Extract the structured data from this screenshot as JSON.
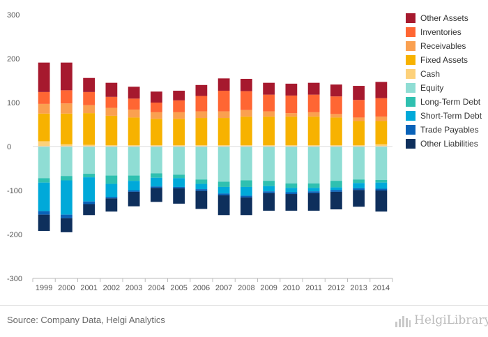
{
  "chart_data": {
    "type": "bar",
    "stacked": true,
    "categories": [
      "1999",
      "2000",
      "2001",
      "2002",
      "2003",
      "2004",
      "2005",
      "2006",
      "2007",
      "2008",
      "2009",
      "2010",
      "2011",
      "2012",
      "2013",
      "2014"
    ],
    "ylim": [
      -300,
      300
    ],
    "yticks": [
      300,
      200,
      100,
      0,
      -100,
      -200,
      -300
    ],
    "grid": false,
    "legend_position": "right",
    "assets": [
      {
        "name": "Cash",
        "color": "#FDD17A",
        "values": [
          12,
          5,
          4,
          3,
          3,
          3,
          3,
          3,
          3,
          3,
          3,
          3,
          3,
          3,
          3,
          5
        ]
      },
      {
        "name": "Fixed Assets",
        "color": "#F7B200",
        "values": [
          63,
          70,
          72,
          67,
          63,
          60,
          60,
          62,
          62,
          65,
          65,
          65,
          65,
          63,
          55,
          53
        ]
      },
      {
        "name": "Receivables",
        "color": "#FAA050",
        "values": [
          22,
          23,
          18,
          18,
          18,
          15,
          15,
          15,
          15,
          15,
          12,
          8,
          10,
          8,
          8,
          10
        ]
      },
      {
        "name": "Inventories",
        "color": "#FF6633",
        "values": [
          27,
          30,
          30,
          25,
          25,
          22,
          27,
          35,
          47,
          43,
          38,
          40,
          40,
          40,
          40,
          42
        ]
      },
      {
        "name": "Other Assets",
        "color": "#A6192E",
        "values": [
          67,
          63,
          32,
          32,
          27,
          25,
          22,
          25,
          28,
          28,
          27,
          27,
          27,
          27,
          32,
          37
        ]
      }
    ],
    "liabilities": [
      {
        "name": "Equity",
        "color": "#8FDDD4",
        "values": [
          72,
          67,
          62,
          66,
          66,
          61,
          64,
          75,
          80,
          77,
          78,
          84,
          84,
          78,
          75,
          76
        ]
      },
      {
        "name": "Long-Term Debt",
        "color": "#2FC0B0",
        "values": [
          10,
          10,
          8,
          19,
          12,
          10,
          8,
          10,
          12,
          15,
          12,
          10,
          10,
          15,
          8,
          6
        ]
      },
      {
        "name": "Short-Term Debt",
        "color": "#00A9D9",
        "values": [
          65,
          78,
          55,
          30,
          22,
          20,
          20,
          12,
          15,
          20,
          12,
          10,
          8,
          6,
          12,
          14
        ]
      },
      {
        "name": "Trade Payables",
        "color": "#0A62B8",
        "values": [
          8,
          8,
          6,
          3,
          3,
          3,
          3,
          4,
          4,
          4,
          4,
          4,
          4,
          4,
          4,
          4
        ]
      },
      {
        "name": "Other Liabilities",
        "color": "#0E2F5C",
        "values": [
          37,
          32,
          25,
          30,
          33,
          32,
          35,
          41,
          45,
          40,
          40,
          38,
          40,
          40,
          38,
          48
        ]
      }
    ],
    "legend": [
      "Other Assets",
      "Inventories",
      "Receivables",
      "Fixed Assets",
      "Cash",
      "Equity",
      "Long-Term Debt",
      "Short-Term Debt",
      "Trade Payables",
      "Other Liabilities"
    ]
  },
  "footer": {
    "source": "Source: Company Data, Helgi Analytics",
    "logo_text": "HelgiLibrary"
  }
}
